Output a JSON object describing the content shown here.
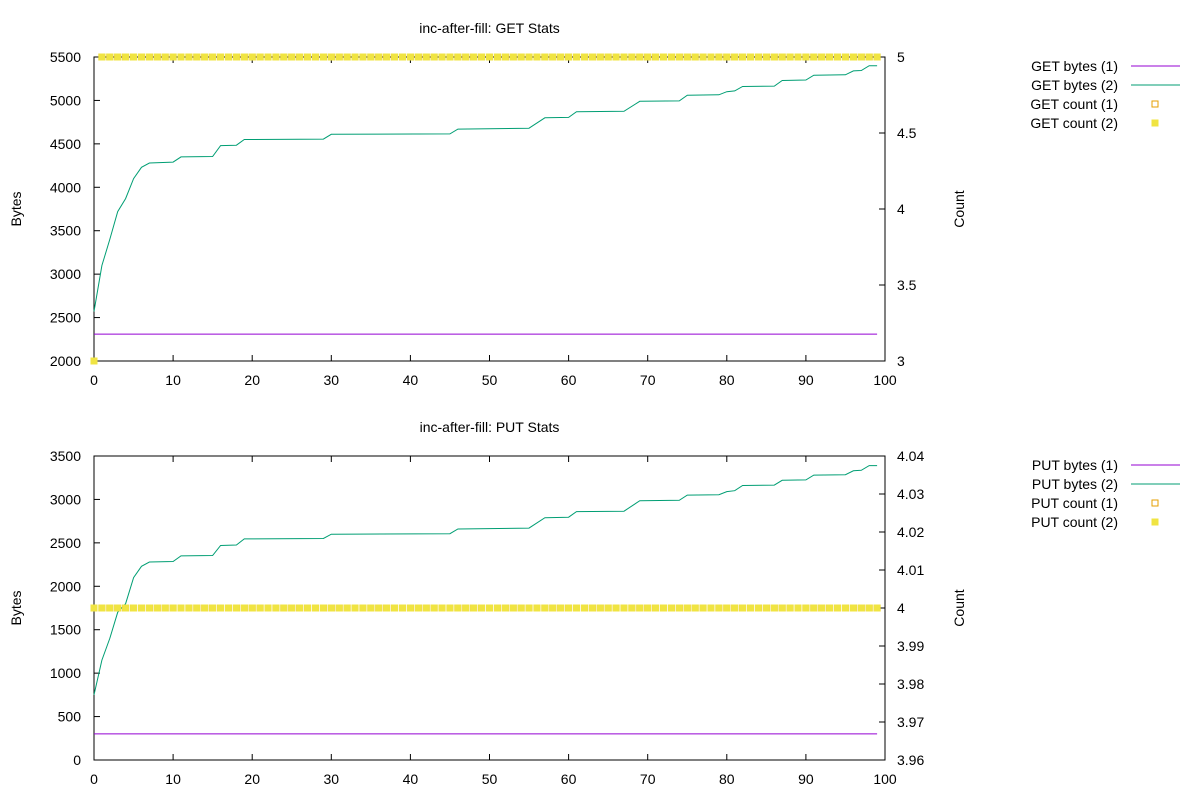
{
  "chart_data": [
    {
      "type": "line",
      "title": "inc-after-fill: GET Stats",
      "xlabel": "",
      "ylabel": "Bytes",
      "y2label": "Count",
      "xlim": [
        0,
        100
      ],
      "ylim": [
        2000,
        5500
      ],
      "y2lim": [
        3,
        5
      ],
      "xticks": [
        0,
        10,
        20,
        30,
        40,
        50,
        60,
        70,
        80,
        90,
        100
      ],
      "yticks": [
        2000,
        2500,
        3000,
        3500,
        4000,
        4500,
        5000,
        5500
      ],
      "y2ticks": [
        3,
        3.5,
        4,
        4.5,
        5
      ],
      "x_count": 100,
      "grid": false,
      "legend_position": "outside-right",
      "series": [
        {
          "name": "GET bytes (1)",
          "axis": "y",
          "style": "line",
          "color": "#9400d3",
          "points": [
            [
              0,
              2310
            ],
            [
              99,
              2310
            ]
          ]
        },
        {
          "name": "GET bytes (2)",
          "axis": "y",
          "style": "line",
          "color": "#009e73",
          "points": [
            [
              0,
              2570
            ],
            [
              1,
              3100
            ],
            [
              2,
              3400
            ],
            [
              3,
              3720
            ],
            [
              4,
              3870
            ],
            [
              5,
              4100
            ],
            [
              6,
              4230
            ],
            [
              7,
              4280
            ],
            [
              10,
              4290
            ],
            [
              11,
              4350
            ],
            [
              15,
              4355
            ],
            [
              16,
              4480
            ],
            [
              18,
              4485
            ],
            [
              19,
              4550
            ],
            [
              29,
              4555
            ],
            [
              30,
              4610
            ],
            [
              45,
              4615
            ],
            [
              46,
              4670
            ],
            [
              55,
              4680
            ],
            [
              57,
              4800
            ],
            [
              60,
              4805
            ],
            [
              61,
              4870
            ],
            [
              67,
              4875
            ],
            [
              69,
              4990
            ],
            [
              74,
              4995
            ],
            [
              75,
              5060
            ],
            [
              79,
              5065
            ],
            [
              80,
              5100
            ],
            [
              81,
              5110
            ],
            [
              82,
              5160
            ],
            [
              86,
              5165
            ],
            [
              87,
              5230
            ],
            [
              90,
              5235
            ],
            [
              91,
              5290
            ],
            [
              95,
              5295
            ],
            [
              96,
              5340
            ],
            [
              97,
              5345
            ],
            [
              98,
              5400
            ],
            [
              99,
              5400
            ]
          ]
        },
        {
          "name": "GET count (1)",
          "axis": "y2",
          "style": "open-square",
          "color": "#e69f00",
          "value": 5,
          "first": 3,
          "x_count": 100
        },
        {
          "name": "GET count (2)",
          "axis": "y2",
          "style": "filled-square",
          "color": "#f0e442",
          "value": 5,
          "first": 3,
          "x_count": 100
        }
      ]
    },
    {
      "type": "line",
      "title": "inc-after-fill: PUT Stats",
      "xlabel": "",
      "ylabel": "Bytes",
      "y2label": "Count",
      "xlim": [
        0,
        100
      ],
      "ylim": [
        0,
        3500
      ],
      "y2lim": [
        3.96,
        4.04
      ],
      "xticks": [
        0,
        10,
        20,
        30,
        40,
        50,
        60,
        70,
        80,
        90,
        100
      ],
      "yticks": [
        0,
        500,
        1000,
        1500,
        2000,
        2500,
        3000,
        3500
      ],
      "y2ticks": [
        3.96,
        3.97,
        3.98,
        3.99,
        4,
        4.01,
        4.02,
        4.03,
        4.04
      ],
      "x_count": 100,
      "grid": false,
      "legend_position": "outside-right",
      "series": [
        {
          "name": "PUT bytes (1)",
          "axis": "y",
          "style": "line",
          "color": "#9400d3",
          "points": [
            [
              0,
              300
            ],
            [
              99,
              300
            ]
          ]
        },
        {
          "name": "PUT bytes (2)",
          "axis": "y",
          "style": "line",
          "color": "#009e73",
          "points": [
            [
              0,
              750
            ],
            [
              1,
              1150
            ],
            [
              2,
              1400
            ],
            [
              3,
              1700
            ],
            [
              4,
              1800
            ],
            [
              5,
              2100
            ],
            [
              6,
              2230
            ],
            [
              7,
              2280
            ],
            [
              10,
              2285
            ],
            [
              11,
              2350
            ],
            [
              15,
              2355
            ],
            [
              16,
              2470
            ],
            [
              18,
              2475
            ],
            [
              19,
              2545
            ],
            [
              29,
              2550
            ],
            [
              30,
              2600
            ],
            [
              45,
              2605
            ],
            [
              46,
              2660
            ],
            [
              55,
              2670
            ],
            [
              57,
              2790
            ],
            [
              60,
              2795
            ],
            [
              61,
              2860
            ],
            [
              67,
              2865
            ],
            [
              69,
              2985
            ],
            [
              74,
              2990
            ],
            [
              75,
              3050
            ],
            [
              79,
              3055
            ],
            [
              80,
              3090
            ],
            [
              81,
              3100
            ],
            [
              82,
              3160
            ],
            [
              86,
              3165
            ],
            [
              87,
              3220
            ],
            [
              90,
              3225
            ],
            [
              91,
              3280
            ],
            [
              95,
              3285
            ],
            [
              96,
              3330
            ],
            [
              97,
              3335
            ],
            [
              98,
              3390
            ],
            [
              99,
              3390
            ]
          ]
        },
        {
          "name": "PUT count (1)",
          "axis": "y2",
          "style": "open-square",
          "color": "#e69f00",
          "value": 4,
          "x_count": 100
        },
        {
          "name": "PUT count (2)",
          "axis": "y2",
          "style": "filled-square",
          "color": "#f0e442",
          "value": 4,
          "x_count": 100
        }
      ]
    }
  ]
}
